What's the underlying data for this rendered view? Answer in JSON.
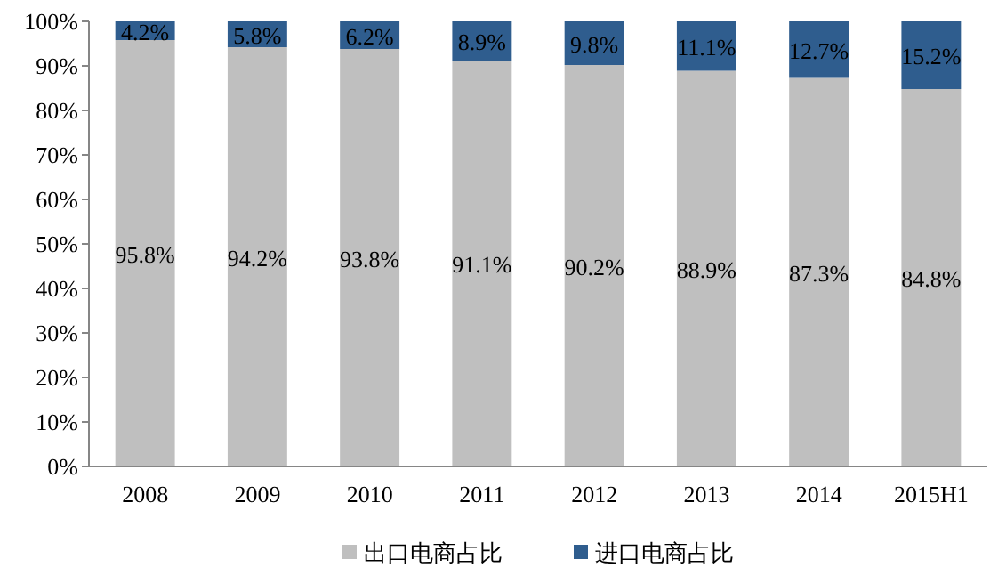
{
  "chart_data": {
    "type": "bar",
    "stacked": true,
    "categories": [
      "2008",
      "2009",
      "2010",
      "2011",
      "2012",
      "2013",
      "2014",
      "2015H1"
    ],
    "series": [
      {
        "name": "出口电商占比",
        "color": "#bfbfbf",
        "values": [
          95.8,
          94.2,
          93.8,
          91.1,
          90.2,
          88.9,
          87.3,
          84.8
        ],
        "value_labels": [
          "95.8%",
          "94.2%",
          "93.8%",
          "91.1%",
          "90.2%",
          "88.9%",
          "87.3%",
          "84.8%"
        ]
      },
      {
        "name": "进口电商占比",
        "color": "#2f5d8e",
        "values": [
          4.2,
          5.8,
          6.2,
          8.9,
          9.8,
          11.1,
          12.7,
          15.2
        ],
        "value_labels": [
          "4.2%",
          "5.8%",
          "6.2%",
          "8.9%",
          "9.8%",
          "11.1%",
          "12.7%",
          "15.2%"
        ]
      }
    ],
    "ylim": [
      0,
      100
    ],
    "yticks": [
      {
        "value": 0,
        "label": "0%"
      },
      {
        "value": 10,
        "label": "10%"
      },
      {
        "value": 20,
        "label": "20%"
      },
      {
        "value": 30,
        "label": "30%"
      },
      {
        "value": 40,
        "label": "40%"
      },
      {
        "value": 50,
        "label": "50%"
      },
      {
        "value": 60,
        "label": "60%"
      },
      {
        "value": 70,
        "label": "70%"
      },
      {
        "value": 80,
        "label": "80%"
      },
      {
        "value": 90,
        "label": "90%"
      },
      {
        "value": 100,
        "label": "100%"
      }
    ],
    "legend": "bottom",
    "grid": false
  }
}
